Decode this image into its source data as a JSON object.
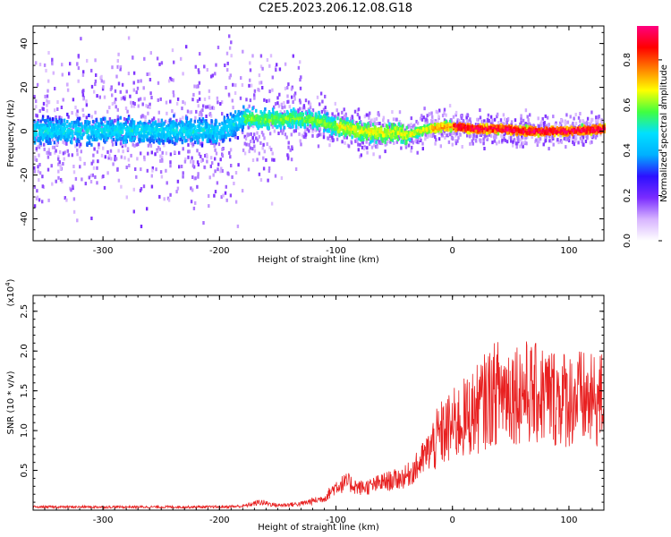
{
  "title": "C2E5.2023.206.12.08.G18",
  "chart_data": [
    {
      "type": "heatmap",
      "xlabel": "Height of straight line (km)",
      "ylabel": "Frequency (Hz)",
      "xlim": [
        -360,
        130
      ],
      "ylim": [
        -50,
        48
      ],
      "xticks": [
        -300,
        -200,
        -100,
        0,
        100
      ],
      "yticks": [
        -40,
        -20,
        0,
        20,
        40
      ],
      "colorbar": {
        "label": "Normalized spectral amplitude",
        "range": [
          0.0,
          0.95
        ],
        "ticks": [
          0.0,
          0.2,
          0.4,
          0.6,
          0.8
        ],
        "colormap": [
          "#ffffff",
          "#d7b4ff",
          "#7a2cff",
          "#2c10ff",
          "#00b0ff",
          "#00e0ff",
          "#40ff40",
          "#ffff00",
          "#ff8000",
          "#ff0000",
          "#ff0080"
        ]
      },
      "signal_trace": {
        "x": [
          -360,
          -300,
          -250,
          -200,
          -180,
          -160,
          -140,
          -120,
          -100,
          -80,
          -60,
          -50,
          -40,
          -30,
          -20,
          -10,
          0,
          20,
          40,
          60,
          80,
          100,
          130
        ],
        "frequency": [
          0,
          0,
          0,
          0,
          6,
          5,
          6,
          5,
          2,
          0,
          -1,
          0,
          -2,
          0,
          1,
          2,
          2,
          1,
          1,
          0,
          0,
          0,
          1
        ]
      }
    },
    {
      "type": "line",
      "xlabel": "Height of straight line (km)",
      "ylabel": "SNR (10 * v/v)",
      "yscale_label": "(x10",
      "yscale_exponent": "4",
      "yscale_suffix": ")",
      "xlim": [
        -360,
        130
      ],
      "ylim": [
        0,
        2.7
      ],
      "xticks": [
        -300,
        -200,
        -100,
        0,
        100
      ],
      "yticks": [
        0.5,
        1.0,
        1.5,
        2.0,
        2.5
      ],
      "ytick_labels": [
        "0.5",
        "1.0",
        "1.5",
        "2.0",
        "2.5"
      ],
      "series": [
        {
          "color": "#e82020",
          "x": [
            -360,
            -300,
            -250,
            -200,
            -180,
            -165,
            -150,
            -130,
            -110,
            -100,
            -90,
            -80,
            -70,
            -60,
            -50,
            -40,
            -30,
            -20,
            -10,
            0,
            10,
            20,
            30,
            40,
            50,
            60,
            70,
            80,
            90,
            100,
            110,
            120,
            130
          ],
          "values": [
            0.04,
            0.04,
            0.04,
            0.04,
            0.05,
            0.1,
            0.06,
            0.08,
            0.15,
            0.3,
            0.35,
            0.28,
            0.3,
            0.35,
            0.38,
            0.42,
            0.55,
            0.75,
            0.95,
            1.05,
            1.15,
            1.25,
            1.4,
            1.5,
            1.5,
            1.5,
            1.45,
            1.45,
            1.42,
            1.4,
            1.4,
            1.35,
            1.4
          ]
        }
      ]
    }
  ]
}
